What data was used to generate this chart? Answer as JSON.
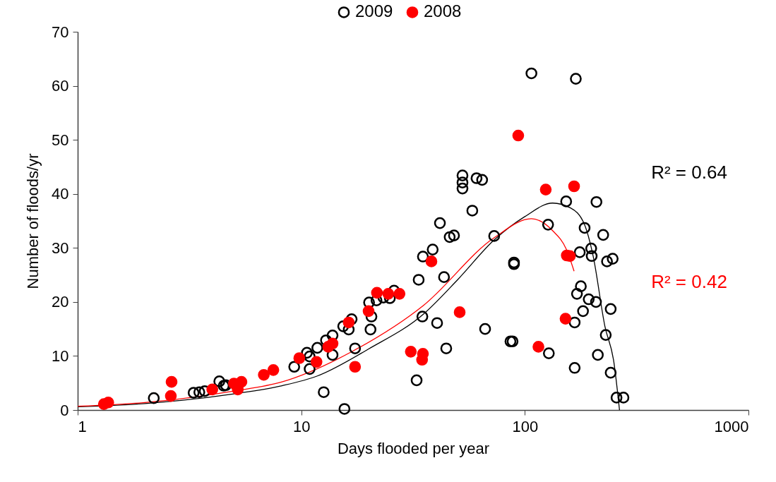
{
  "chart_data": {
    "type": "scatter",
    "xlabel": "Days flooded per year",
    "ylabel": "Number of floods/yr",
    "log": "x",
    "xlim": [
      1,
      1000
    ],
    "xticks": [
      1,
      10,
      100,
      1000
    ],
    "ylim": [
      0,
      70
    ],
    "yticks": [
      0,
      10,
      20,
      30,
      40,
      50,
      60,
      70
    ],
    "grid": false,
    "legend": "top",
    "marker": "circle",
    "series": [
      {
        "name": "2009",
        "color": "#000000",
        "x": [
          2.19,
          3.3,
          3.5,
          3.7,
          4.3,
          4.5,
          4.6,
          9.3,
          10.6,
          10.9,
          10.9,
          11.8,
          12.9,
          13.8,
          13.8,
          12.6,
          15.6,
          15.4,
          16.3,
          16.8,
          17.4,
          20.1,
          20.6,
          20.4,
          21.7,
          23.3,
          24.9,
          26.0,
          34.8,
          32.8,
          33.5,
          35.0,
          38.7,
          41.7,
          43.5,
          40.5,
          44.5,
          46.1,
          48.2,
          58.2,
          52.6,
          52.6,
          52.6,
          60.8,
          64.4,
          66.4,
          72.9,
          107,
          169,
          153,
          209,
          127,
          185,
          224,
          176,
          198,
          199,
          233,
          247,
          89.4,
          89.4,
          178,
          171,
          193,
          208,
          182,
          242,
          167,
          86.2,
          88.1,
          128,
          230,
          212,
          167,
          242,
          257,
          276
        ],
        "values": [
          2.2,
          3.2,
          3.3,
          3.5,
          5.3,
          4.5,
          4.6,
          8.0,
          10.6,
          9.9,
          7.6,
          11.5,
          12.9,
          13.8,
          10.2,
          3.3,
          0.2,
          15.5,
          14.9,
          16.8,
          11.4,
          19.9,
          17.3,
          14.9,
          20.3,
          20.8,
          20.7,
          22.1,
          17.3,
          5.5,
          24.1,
          28.4,
          29.7,
          34.6,
          24.6,
          16.1,
          11.4,
          32.0,
          32.3,
          36.9,
          43.4,
          42.1,
          41.0,
          42.9,
          42.6,
          15.0,
          32.2,
          62.3,
          61.3,
          38.6,
          38.5,
          34.3,
          33.7,
          32.4,
          29.2,
          29.9,
          28.5,
          27.5,
          28.0,
          27.0,
          27.3,
          22.9,
          21.5,
          20.5,
          20.0,
          18.3,
          18.7,
          16.2,
          12.7,
          12.7,
          10.5,
          13.9,
          10.2,
          7.8,
          6.9,
          2.3,
          2.3
        ]
      },
      {
        "name": "2008",
        "color": "#ff0000",
        "x": [
          1.31,
          1.37,
          2.61,
          2.63,
          4.0,
          5.0,
          5.2,
          5.4,
          6.8,
          7.5,
          9.8,
          11.7,
          13.2,
          13.8,
          16.3,
          17.4,
          20.0,
          21.8,
          24.5,
          27.5,
          38.2,
          30.9,
          35.0,
          34.7,
          51.1,
          93.4,
          124,
          166,
          154,
          159,
          152,
          115
        ],
        "values": [
          1.1,
          1.4,
          2.6,
          5.2,
          3.8,
          4.9,
          3.8,
          5.2,
          6.5,
          7.4,
          9.6,
          8.9,
          11.7,
          12.3,
          16.2,
          8.0,
          18.3,
          21.7,
          21.5,
          21.5,
          27.5,
          10.8,
          10.4,
          9.3,
          18.1,
          50.8,
          40.8,
          41.4,
          28.6,
          28.5,
          16.9,
          11.7
        ]
      },
      {
        "type": "line",
        "color": "#000000",
        "marker": "none",
        "x": [
          1,
          2,
          5,
          8.2,
          11.8,
          20,
          35.3,
          50,
          73,
          100,
          133,
          160,
          184,
          202,
          228,
          250,
          265
        ],
        "values": [
          0.6,
          1.2,
          3.0,
          4.5,
          6.3,
          11.3,
          17.8,
          24.1,
          31.5,
          35.8,
          38.3,
          37.4,
          34.5,
          28.5,
          15.5,
          8.9,
          0
        ]
      },
      {
        "type": "line",
        "color": "#ff0000",
        "marker": "none",
        "x": [
          1,
          2,
          5,
          8.2,
          17,
          35.3,
          73,
          107,
          133,
          153,
          166
        ],
        "values": [
          0.7,
          1.4,
          3.5,
          5.2,
          10.9,
          19.4,
          31.9,
          35.4,
          33.2,
          29.8,
          25.7
        ]
      }
    ],
    "annotations": [
      "R² = 0.64",
      "R² = 0.42"
    ]
  }
}
